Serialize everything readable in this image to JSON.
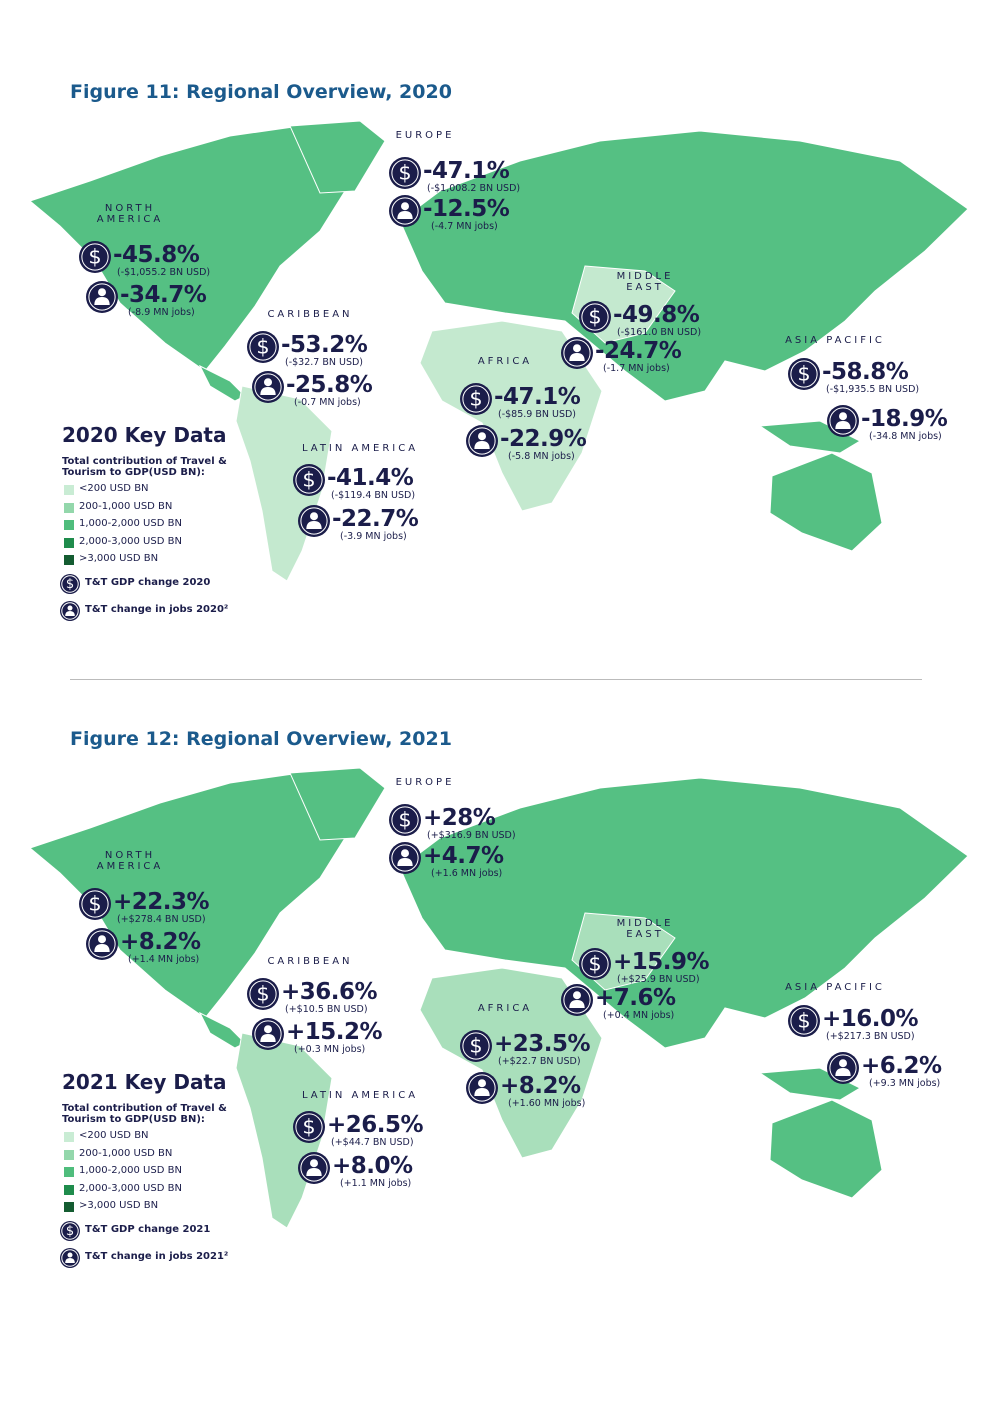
{
  "figures": [
    {
      "title": "Figure 11: Regional Overview, 2020",
      "regions": [
        {
          "name": "EUROPE",
          "gdp_change": "-47.1%",
          "gdp_amount": "(-$1,008.2 BN USD)",
          "jobs_change": "-12.5%",
          "jobs_amount": "(-4.7 MN jobs)"
        },
        {
          "name": "NORTH AMERICA",
          "gdp_change": "-45.8%",
          "gdp_amount": "(-$1,055.2 BN USD)",
          "jobs_change": "-34.7%",
          "jobs_amount": "(-8.9 MN jobs)"
        },
        {
          "name": "CARIBBEAN",
          "gdp_change": "-53.2%",
          "gdp_amount": "(-$32.7 BN USD)",
          "jobs_change": "-25.8%",
          "jobs_amount": "(-0.7 MN jobs)"
        },
        {
          "name": "LATIN AMERICA",
          "gdp_change": "-41.4%",
          "gdp_amount": "(-$119.4 BN USD)",
          "jobs_change": "-22.7%",
          "jobs_amount": "(-3.9 MN jobs)"
        },
        {
          "name": "AFRICA",
          "gdp_change": "-47.1%",
          "gdp_amount": "(-$85.9 BN USD)",
          "jobs_change": "-22.9%",
          "jobs_amount": "(-5.8 MN jobs)"
        },
        {
          "name": "MIDDLE EAST",
          "gdp_change": "-49.8%",
          "gdp_amount": "(-$161.0 BN USD)",
          "jobs_change": "-24.7%",
          "jobs_amount": "(-1.7 MN jobs)"
        },
        {
          "name": "ASIA PACIFIC",
          "gdp_change": "-58.8%",
          "gdp_amount": "(-$1,935.5 BN USD)",
          "jobs_change": "-18.9%",
          "jobs_amount": "(-34.8 MN jobs)"
        }
      ],
      "key": {
        "title": "2020 Key Data",
        "description": "Total contribution of Travel & Tourism to GDP(USD BN):",
        "items": [
          {
            "label": "<200 USD BN",
            "color": "#c9ecd4"
          },
          {
            "label": "200-1,000 USD BN",
            "color": "#93d7ab"
          },
          {
            "label": "1,000-2,000 USD BN",
            "color": "#4fbd7c"
          },
          {
            "label": "2,000-3,000 USD BN",
            "color": "#1f8c4c"
          },
          {
            "label": ">3,000 USD BN",
            "color": "#145c31"
          }
        ],
        "gdp_icon_label": "T&T GDP change 2020",
        "jobs_icon_label": "T&T change in jobs 2020²"
      }
    },
    {
      "title": "Figure 12: Regional Overview, 2021",
      "regions": [
        {
          "name": "EUROPE",
          "gdp_change": "+28%",
          "gdp_amount": "(+$316.9 BN USD)",
          "jobs_change": "+4.7%",
          "jobs_amount": "(+1.6 MN jobs)"
        },
        {
          "name": "NORTH AMERICA",
          "gdp_change": "+22.3%",
          "gdp_amount": "(+$278.4 BN USD)",
          "jobs_change": "+8.2%",
          "jobs_amount": "(+1.4 MN jobs)"
        },
        {
          "name": "CARIBBEAN",
          "gdp_change": "+36.6%",
          "gdp_amount": "(+$10.5 BN USD)",
          "jobs_change": "+15.2%",
          "jobs_amount": "(+0.3 MN jobs)"
        },
        {
          "name": "LATIN AMERICA",
          "gdp_change": "+26.5%",
          "gdp_amount": "(+$44.7 BN USD)",
          "jobs_change": "+8.0%",
          "jobs_amount": "(+1.1 MN jobs)"
        },
        {
          "name": "AFRICA",
          "gdp_change": "+23.5%",
          "gdp_amount": "(+$22.7 BN USD)",
          "jobs_change": "+8.2%",
          "jobs_amount": "(+1.60 MN jobs)"
        },
        {
          "name": "MIDDLE EAST",
          "gdp_change": "+15.9%",
          "gdp_amount": "(+$25.9 BN USD)",
          "jobs_change": "+7.6%",
          "jobs_amount": "(+0.4 MN jobs)"
        },
        {
          "name": "ASIA PACIFIC",
          "gdp_change": "+16.0%",
          "gdp_amount": "(+$217.3 BN USD)",
          "jobs_change": "+6.2%",
          "jobs_amount": "(+9.3 MN jobs)"
        }
      ],
      "key": {
        "title": "2021 Key Data",
        "description": "Total contribution of Travel & Tourism to GDP(USD BN):",
        "items": [
          {
            "label": "<200 USD BN",
            "color": "#c9ecd4"
          },
          {
            "label": "200-1,000 USD BN",
            "color": "#93d7ab"
          },
          {
            "label": "1,000-2,000 USD BN",
            "color": "#4fbd7c"
          },
          {
            "label": "2,000-3,000 USD BN",
            "color": "#1f8c4c"
          },
          {
            "label": ">3,000 USD BN",
            "color": "#145c31"
          }
        ],
        "gdp_icon_label": "T&T GDP change 2021",
        "jobs_icon_label": "T&T change in jobs 2021²"
      }
    }
  ]
}
